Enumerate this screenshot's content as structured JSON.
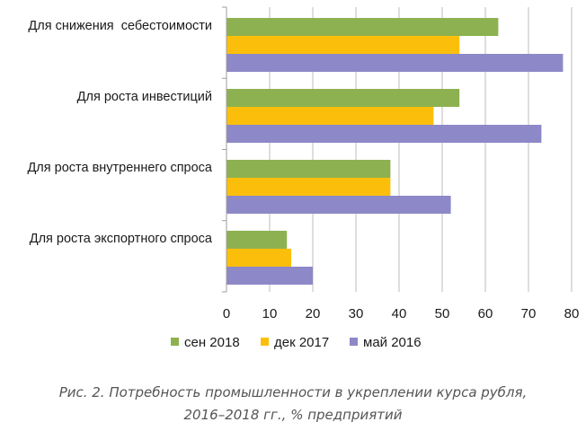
{
  "chart_data": {
    "type": "bar",
    "orientation": "horizontal",
    "categories": [
      "Для снижения  себестоимости",
      "Для роста инвестиций",
      "Для роста внутреннего спроса",
      "Для роста экспортного спроса"
    ],
    "series": [
      {
        "name": "сен 2018",
        "color": "#8db150",
        "values": [
          63,
          54,
          38,
          14
        ]
      },
      {
        "name": "дек 2017",
        "color": "#fbbf0b",
        "values": [
          54,
          48,
          38,
          15
        ]
      },
      {
        "name": "май 2016",
        "color": "#8d88c7",
        "values": [
          78,
          73,
          52,
          20
        ]
      }
    ],
    "xlim": [
      0,
      80
    ],
    "xticks": [
      0,
      10,
      20,
      30,
      40,
      50,
      60,
      70,
      80
    ],
    "grid": true,
    "legend_position": "bottom"
  },
  "caption": {
    "line1": "Рис. 2. Потребность промышленности в укреплении курса рубля,",
    "line2": "2016–2018 гг., % предприятий"
  }
}
